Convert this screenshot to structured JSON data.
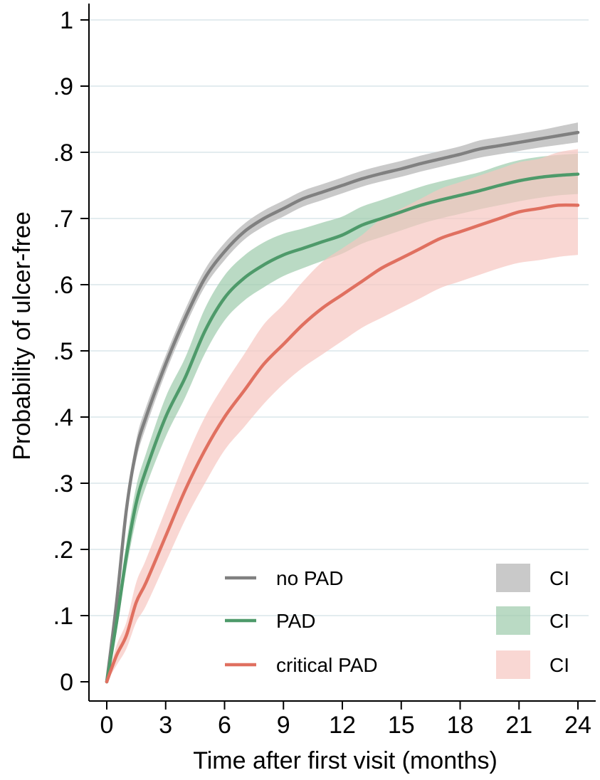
{
  "chart_data": {
    "type": "line",
    "title": "",
    "xlabel": "Time after first visit (months)",
    "ylabel": "Probability of ulcer-free",
    "xlim": [
      0,
      24
    ],
    "ylim": [
      0,
      1
    ],
    "x_ticks": [
      0,
      3,
      6,
      9,
      12,
      15,
      18,
      21,
      24
    ],
    "x_tick_labels": [
      "0",
      "3",
      "6",
      "9",
      "12",
      "15",
      "18",
      "21",
      "24"
    ],
    "y_ticks": [
      0,
      0.1,
      0.2,
      0.3,
      0.4,
      0.5,
      0.6,
      0.7,
      0.8,
      0.9,
      1
    ],
    "y_tick_labels": [
      "0",
      ".1",
      ".2",
      ".3",
      ".4",
      ".5",
      ".6",
      ".7",
      ".8",
      ".9",
      "1"
    ],
    "grid": "horizontal",
    "legend_position": "bottom-right",
    "x": [
      0,
      0.5,
      1,
      1.5,
      2,
      3,
      4,
      5,
      6,
      7,
      8,
      9,
      10,
      11,
      12,
      13,
      14,
      15,
      16,
      17,
      18,
      19,
      20,
      21,
      22,
      23,
      24
    ],
    "series": [
      {
        "name": "no PAD",
        "ci_label": "CI",
        "color": "#808080",
        "ci_color": "#c9c9c9",
        "ci_opacity": 1.0,
        "values": [
          0,
          0.12,
          0.26,
          0.35,
          0.4,
          0.48,
          0.55,
          0.61,
          0.65,
          0.68,
          0.7,
          0.715,
          0.73,
          0.74,
          0.75,
          0.76,
          0.768,
          0.775,
          0.783,
          0.79,
          0.797,
          0.805,
          0.81,
          0.815,
          0.82,
          0.825,
          0.83
        ],
        "lower": [
          0,
          0.11,
          0.25,
          0.335,
          0.385,
          0.467,
          0.537,
          0.597,
          0.637,
          0.668,
          0.688,
          0.703,
          0.718,
          0.728,
          0.738,
          0.748,
          0.756,
          0.763,
          0.771,
          0.778,
          0.785,
          0.792,
          0.797,
          0.802,
          0.807,
          0.811,
          0.815
        ],
        "upper": [
          0,
          0.13,
          0.27,
          0.365,
          0.415,
          0.493,
          0.563,
          0.623,
          0.663,
          0.692,
          0.712,
          0.727,
          0.742,
          0.752,
          0.762,
          0.772,
          0.78,
          0.787,
          0.795,
          0.802,
          0.809,
          0.818,
          0.823,
          0.828,
          0.833,
          0.839,
          0.845
        ]
      },
      {
        "name": "PAD",
        "ci_label": "CI",
        "color": "#4e9a6a",
        "ci_color": "#9ccbab",
        "ci_opacity": 0.7,
        "values": [
          0,
          0.09,
          0.19,
          0.27,
          0.32,
          0.4,
          0.46,
          0.53,
          0.58,
          0.61,
          0.63,
          0.645,
          0.655,
          0.665,
          0.675,
          0.69,
          0.7,
          0.71,
          0.72,
          0.728,
          0.735,
          0.742,
          0.75,
          0.757,
          0.762,
          0.765,
          0.767
        ],
        "lower": [
          0,
          0.075,
          0.17,
          0.245,
          0.295,
          0.37,
          0.43,
          0.496,
          0.546,
          0.576,
          0.596,
          0.613,
          0.625,
          0.636,
          0.647,
          0.662,
          0.672,
          0.682,
          0.692,
          0.7,
          0.707,
          0.714,
          0.72,
          0.726,
          0.731,
          0.735,
          0.737
        ],
        "upper": [
          0,
          0.105,
          0.21,
          0.295,
          0.345,
          0.43,
          0.49,
          0.564,
          0.614,
          0.644,
          0.664,
          0.677,
          0.685,
          0.694,
          0.703,
          0.718,
          0.728,
          0.738,
          0.748,
          0.756,
          0.763,
          0.77,
          0.78,
          0.788,
          0.793,
          0.796,
          0.798
        ]
      },
      {
        "name": "critical PAD",
        "ci_label": "CI",
        "color": "#e07060",
        "ci_color": "#f6c6c0",
        "ci_opacity": 0.7,
        "values": [
          0,
          0.04,
          0.07,
          0.12,
          0.15,
          0.22,
          0.29,
          0.35,
          0.4,
          0.44,
          0.48,
          0.51,
          0.54,
          0.565,
          0.585,
          0.605,
          0.625,
          0.64,
          0.655,
          0.67,
          0.68,
          0.69,
          0.7,
          0.71,
          0.715,
          0.72,
          0.72
        ],
        "lower": [
          0,
          0.025,
          0.05,
          0.09,
          0.115,
          0.18,
          0.245,
          0.3,
          0.35,
          0.385,
          0.42,
          0.45,
          0.475,
          0.495,
          0.515,
          0.535,
          0.55,
          0.565,
          0.58,
          0.595,
          0.605,
          0.615,
          0.625,
          0.633,
          0.637,
          0.642,
          0.645
        ],
        "upper": [
          0,
          0.055,
          0.09,
          0.15,
          0.185,
          0.26,
          0.335,
          0.4,
          0.45,
          0.495,
          0.54,
          0.57,
          0.605,
          0.635,
          0.655,
          0.675,
          0.7,
          0.715,
          0.73,
          0.745,
          0.755,
          0.765,
          0.775,
          0.785,
          0.79,
          0.8,
          0.805
        ]
      }
    ]
  }
}
